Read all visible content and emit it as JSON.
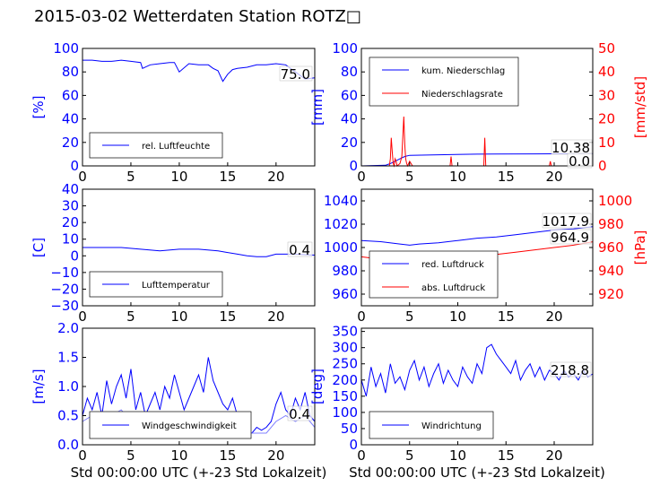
{
  "title": "2015-03-02 Wetterdaten Station ROTZ□",
  "colors": {
    "blue": "#0000ff",
    "red": "#ff0000",
    "lightblue": "#8080ff"
  },
  "chart_data": [
    {
      "id": "p1",
      "type": "line",
      "ylabel": "[%]",
      "ylim": [
        0,
        100
      ],
      "yticks": [
        "0",
        "20",
        "40",
        "60",
        "80",
        "100"
      ],
      "xlim": [
        0,
        24
      ],
      "xticks": [
        "0",
        "5",
        "10",
        "15",
        "20"
      ],
      "xlabel": "",
      "series": [
        {
          "name": "rel. Luftfeuchte",
          "color": "#0000ff",
          "x": [
            0,
            1,
            2,
            3,
            4,
            5,
            6,
            6.2,
            7,
            8,
            9,
            9.5,
            10,
            11,
            12,
            13,
            13.5,
            14,
            14.5,
            15,
            15.5,
            16,
            17,
            18,
            19,
            20,
            21,
            22,
            23,
            24
          ],
          "values": [
            90,
            90,
            89,
            89,
            90,
            89,
            88,
            83,
            86,
            87,
            88,
            88,
            80,
            87,
            86,
            86,
            83,
            81,
            72,
            78,
            82,
            83,
            84,
            86,
            86,
            87,
            86,
            80,
            74,
            75
          ]
        }
      ],
      "annotations": [
        "75.0"
      ],
      "legend_position": "lower-left"
    },
    {
      "id": "p2",
      "type": "line",
      "ylabel": "[mm]",
      "ylim": [
        0,
        100
      ],
      "yticks": [
        "0",
        "20",
        "40",
        "60",
        "80",
        "100"
      ],
      "ylabel_right": "[mm/std]",
      "ylim_right": [
        0,
        50
      ],
      "yticks_right": [
        "0",
        "10",
        "20",
        "30",
        "40",
        "50"
      ],
      "xlim": [
        0,
        24
      ],
      "xticks": [
        "0",
        "5",
        "10",
        "15",
        "20"
      ],
      "xlabel": "",
      "series": [
        {
          "name": "kum. Niederschlag",
          "color": "#0000ff",
          "axis": "left",
          "x": [
            0,
            2.5,
            3,
            3.5,
            4,
            4.5,
            5,
            8,
            12,
            14,
            18,
            20,
            24
          ],
          "values": [
            0,
            0.5,
            2,
            4,
            6,
            8,
            9,
            9.5,
            10,
            10.1,
            10.2,
            10.3,
            10.38
          ]
        },
        {
          "name": "Niederschlagsrate",
          "color": "#ff0000",
          "axis": "right",
          "x": [
            0,
            2.9,
            3.0,
            3.1,
            3.2,
            3.3,
            3.4,
            3.5,
            3.6,
            3.7,
            4.0,
            4.2,
            4.4,
            4.5,
            4.6,
            4.7,
            4.8,
            5.0,
            5.3,
            5.6,
            9.2,
            9.3,
            9.4,
            12.7,
            12.8,
            12.9,
            19.5,
            19.6,
            19.7,
            24
          ],
          "values": [
            0,
            0,
            3,
            12,
            6,
            1,
            0,
            3,
            2,
            0,
            1,
            4,
            21,
            9,
            3,
            1,
            0,
            2,
            0,
            0,
            0,
            4,
            0,
            0,
            12,
            0,
            0,
            2,
            0,
            0
          ]
        }
      ],
      "annotations": [
        "10.38",
        "0.0"
      ],
      "legend_position": "upper-left"
    },
    {
      "id": "p3",
      "type": "line",
      "ylabel": "[C]",
      "ylim": [
        -30,
        40
      ],
      "yticks": [
        "−30",
        "−20",
        "−10",
        "0",
        "10",
        "20",
        "30",
        "40"
      ],
      "xlim": [
        0,
        24
      ],
      "xticks": [
        "0",
        "5",
        "10",
        "15",
        "20"
      ],
      "xlabel": "",
      "series": [
        {
          "name": "Lufttemperatur",
          "color": "#0000ff",
          "x": [
            0,
            2,
            4,
            6,
            8,
            10,
            12,
            14,
            15,
            16,
            17,
            18,
            19,
            20,
            22,
            24
          ],
          "values": [
            5,
            5,
            5,
            4,
            3,
            4,
            4,
            3,
            2,
            1,
            0,
            -0.5,
            -0.5,
            1,
            1,
            0.4
          ]
        }
      ],
      "annotations": [
        "0.4"
      ],
      "legend_position": "lower-left"
    },
    {
      "id": "p4",
      "type": "line",
      "ylabel": "",
      "ylim": [
        950,
        1050
      ],
      "yticks": [
        "960",
        "980",
        "1000",
        "1020",
        "1040"
      ],
      "ylabel_right": "[hPa]",
      "ylim_right": [
        910,
        1010
      ],
      "yticks_right": [
        "920",
        "940",
        "960",
        "980",
        "1000"
      ],
      "xlim": [
        0,
        24
      ],
      "xticks": [
        "0",
        "5",
        "10",
        "15",
        "20"
      ],
      "xlabel": "",
      "series": [
        {
          "name": "red. Luftdruck",
          "color": "#0000ff",
          "axis": "left",
          "x": [
            0,
            2,
            4,
            5,
            6,
            8,
            10,
            12,
            14,
            16,
            18,
            20,
            22,
            24
          ],
          "values": [
            1006,
            1005,
            1003,
            1002,
            1003,
            1004,
            1006,
            1008,
            1009,
            1011,
            1013,
            1015,
            1016,
            1017.9
          ]
        },
        {
          "name": "abs. Luftdruck",
          "color": "#ff0000",
          "axis": "right",
          "x": [
            0,
            2,
            4,
            5,
            6,
            8,
            10,
            12,
            14,
            16,
            18,
            20,
            22,
            24
          ],
          "values": [
            952,
            950,
            948,
            947,
            948,
            949,
            951,
            953,
            954,
            956,
            958,
            960,
            962,
            964.9
          ]
        }
      ],
      "annotations": [
        "1017.9",
        "964.9"
      ],
      "legend_position": "lower-left"
    },
    {
      "id": "p5",
      "type": "line",
      "ylabel": "[m/s]",
      "ylim": [
        0,
        2.0
      ],
      "yticks": [
        "0.0",
        "0.5",
        "1.0",
        "1.5",
        "2.0"
      ],
      "xlim": [
        0,
        24
      ],
      "xticks": [
        "0",
        "5",
        "10",
        "15",
        "20"
      ],
      "xlabel": "Std 00:00:00 UTC (+-23 Std Lokalzeit)",
      "series": [
        {
          "name": "Windgeschwindigkeit",
          "color": "#0000ff",
          "x": [
            0,
            0.5,
            1,
            1.5,
            2,
            2.5,
            3,
            3.5,
            4,
            4.5,
            5,
            5.5,
            6,
            6.5,
            7,
            7.5,
            8,
            8.5,
            9,
            9.5,
            10,
            10.5,
            11,
            11.5,
            12,
            12.5,
            13,
            13.5,
            14,
            14.5,
            15,
            15.5,
            16,
            16.5,
            17,
            17.5,
            18,
            18.5,
            19,
            19.5,
            20,
            20.5,
            21,
            21.5,
            22,
            22.5,
            23,
            23.5,
            24
          ],
          "values": [
            0.5,
            0.8,
            0.6,
            0.9,
            0.5,
            1.1,
            0.7,
            1.0,
            1.2,
            0.8,
            1.3,
            0.6,
            0.9,
            0.5,
            0.7,
            0.9,
            0.6,
            1.0,
            0.8,
            1.2,
            0.9,
            0.6,
            0.8,
            1.0,
            1.2,
            0.9,
            1.5,
            1.1,
            0.9,
            0.7,
            0.6,
            0.8,
            0.5,
            0.3,
            0.25,
            0.2,
            0.3,
            0.25,
            0.3,
            0.4,
            0.7,
            0.9,
            0.6,
            0.5,
            0.8,
            0.6,
            0.9,
            0.5,
            0.4
          ]
        },
        {
          "name": "",
          "color": "#8080ff",
          "x": [
            0,
            1,
            2,
            3,
            4,
            5,
            6,
            7,
            8,
            9,
            10,
            11,
            12,
            13,
            14,
            15,
            16,
            17,
            18,
            19,
            20,
            21,
            22,
            23,
            24
          ],
          "values": [
            0.4,
            0.5,
            0.4,
            0.5,
            0.6,
            0.4,
            0.3,
            0.3,
            0.2,
            0.3,
            0.4,
            0.3,
            0.5,
            0.5,
            0.4,
            0.3,
            0.3,
            0.2,
            0.2,
            0.2,
            0.4,
            0.5,
            0.4,
            0.5,
            0.3
          ]
        }
      ],
      "annotations": [
        "0.4"
      ],
      "legend_position": "lower-center"
    },
    {
      "id": "p6",
      "type": "line",
      "ylabel": "[deg]",
      "ylim": [
        0,
        360
      ],
      "yticks": [
        "0",
        "50",
        "100",
        "150",
        "200",
        "250",
        "300",
        "350"
      ],
      "xlim": [
        0,
        24
      ],
      "xticks": [
        "0",
        "5",
        "10",
        "15",
        "20"
      ],
      "xlabel": "Std 00:00:00 UTC (+-23 Std Lokalzeit)",
      "series": [
        {
          "name": "Windrichtung",
          "color": "#0000ff",
          "x": [
            0,
            0.5,
            1,
            1.5,
            2,
            2.5,
            3,
            3.5,
            4,
            4.5,
            5,
            5.5,
            6,
            6.5,
            7,
            7.5,
            8,
            8.5,
            9,
            9.5,
            10,
            10.5,
            11,
            11.5,
            12,
            12.5,
            13,
            13.5,
            14,
            14.5,
            15,
            15.5,
            16,
            16.5,
            17,
            17.5,
            18,
            18.5,
            19,
            19.5,
            20,
            20.5,
            21,
            21.5,
            22,
            22.5,
            23,
            23.5,
            24
          ],
          "values": [
            200,
            150,
            240,
            180,
            220,
            160,
            250,
            190,
            210,
            170,
            230,
            260,
            200,
            240,
            180,
            220,
            250,
            190,
            230,
            200,
            180,
            240,
            210,
            190,
            250,
            220,
            300,
            310,
            280,
            260,
            240,
            220,
            260,
            200,
            230,
            250,
            210,
            240,
            200,
            230,
            220,
            200,
            230,
            210,
            220,
            200,
            230,
            210,
            218.8
          ]
        }
      ],
      "annotations": [
        "218.8"
      ],
      "legend_position": "lower-left"
    }
  ]
}
